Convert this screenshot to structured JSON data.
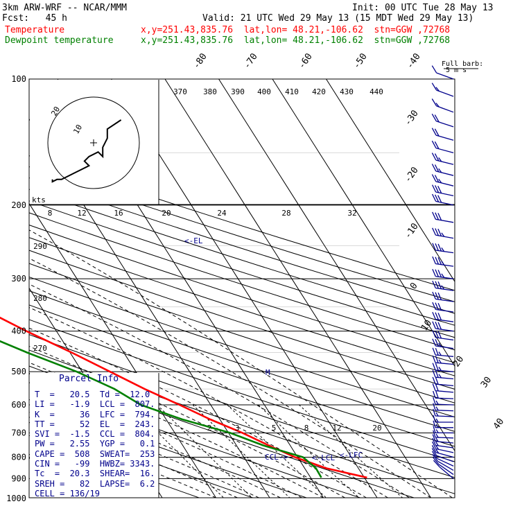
{
  "header": {
    "model": "3km ARW-WRF -- NCAR/MMM",
    "init": "Init: 00 UTC Tue 28 May 13",
    "fcst": "Fcst:   45 h",
    "valid": "Valid: 21 UTC Wed 29 May 13 (15 MDT Wed 29 May 13)",
    "temp_label": "Temperature",
    "temp_loc": "x,y=251.43,835.76  lat,lon= 48.21,-106.62  stn=GGW ,72768",
    "dew_label": "Dewpoint temperature",
    "dew_loc": "x,y=251.43,835.76  lat,lon= 48.21,-106.62  stn=GGW ,72768"
  },
  "colors": {
    "temperature": "#ff0000",
    "dewpoint": "#008000",
    "parcel": "#00008b",
    "barbs": "#00008b",
    "grid": "#000000"
  },
  "chart_data": {
    "type": "line",
    "subtype": "skew-T log-P diagram",
    "y_scale": "log",
    "pressure_labels": [
      "100",
      "200",
      "300",
      "400",
      "500",
      "600",
      "700",
      "800",
      "900",
      "1000"
    ],
    "temperature_labels": [
      "-80",
      "-70",
      "-60",
      "-50",
      "-40",
      "-30",
      "-20",
      "-10",
      "0",
      "10",
      "20",
      "30",
      "40"
    ],
    "theta_labels": [
      "370",
      "380",
      "390",
      "400",
      "410",
      "420",
      "430",
      "440"
    ],
    "theta_side_labels": [
      "290",
      "280",
      "270"
    ],
    "mixing_ratio_labels": [
      "2",
      "3",
      "5",
      "8",
      "12",
      "20"
    ],
    "hodograph_speed_labels": [
      "8",
      "12",
      "16",
      "20",
      "24",
      "28",
      "32"
    ],
    "hodograph": {
      "unit_label": "kts",
      "ring_labels": [
        "20",
        "10"
      ],
      "center_mark": "+",
      "trace": [
        [
          -9,
          -8
        ],
        [
          -9,
          -8.5
        ],
        [
          -8,
          -8
        ],
        [
          -7,
          -8
        ],
        [
          -4,
          -6.5
        ],
        [
          -3,
          -6
        ],
        [
          -1,
          -5
        ],
        [
          -2,
          -4
        ],
        [
          -1,
          -3
        ],
        [
          1,
          -2
        ],
        [
          2,
          -3
        ],
        [
          2,
          -1
        ],
        [
          3,
          1
        ],
        [
          3,
          3
        ],
        [
          6,
          5
        ]
      ]
    },
    "series": [
      {
        "name": "Temperature",
        "color": "#ff0000",
        "points": [
          [
            895,
            20.5
          ],
          [
            850,
            14.0
          ],
          [
            800,
            9.5
          ],
          [
            750,
            6.0
          ],
          [
            700,
            2.6
          ],
          [
            650,
            -1.8
          ],
          [
            600,
            -5.8
          ],
          [
            550,
            -10.4
          ],
          [
            500,
            -14.8
          ],
          [
            450,
            -19.7
          ],
          [
            400,
            -25.6
          ],
          [
            350,
            -31.6
          ],
          [
            300,
            -39.2
          ],
          [
            250,
            -47.8
          ],
          [
            225,
            -52.0
          ],
          [
            200,
            -51.5
          ],
          [
            180,
            -50.0
          ],
          [
            160,
            -49.5
          ],
          [
            140,
            -48.3
          ],
          [
            120,
            -47.0
          ],
          [
            100,
            -46.5
          ]
        ]
      },
      {
        "name": "Dewpoint temperature",
        "color": "#008000",
        "points": [
          [
            895,
            12.0
          ],
          [
            850,
            12.1
          ],
          [
            800,
            11.0
          ],
          [
            750,
            5.0
          ],
          [
            700,
            0.3
          ],
          [
            650,
            -7.0
          ],
          [
            600,
            -13.0
          ],
          [
            550,
            -16.0
          ],
          [
            500,
            -21.0
          ],
          [
            450,
            -28.0
          ],
          [
            400,
            -35.0
          ],
          [
            350,
            -43.2
          ],
          [
            300,
            -52.0
          ],
          [
            250,
            -62.8
          ],
          [
            225,
            -67.2
          ],
          [
            200,
            -66.5
          ],
          [
            180,
            -78.5
          ],
          [
            160,
            -77.0
          ],
          [
            140,
            -79.5
          ],
          [
            120,
            -84.0
          ],
          [
            100,
            -87.4
          ]
        ]
      }
    ],
    "annotations": [
      {
        "text": "<-EL",
        "p": 243
      },
      {
        "text": "M",
        "p": 500
      },
      {
        "text": "CCL->",
        "p": 805
      },
      {
        "text": "<-LCL",
        "p": 807
      },
      {
        "text": "<-LFC",
        "p": 794
      }
    ],
    "wind_profile": {
      "title": "Full barb:",
      "subtitle": "5 m s",
      "levels": [
        [
          900,
          230,
          5
        ],
        [
          880,
          235,
          5
        ],
        [
          860,
          240,
          6
        ],
        [
          840,
          245,
          6
        ],
        [
          820,
          250,
          6
        ],
        [
          800,
          255,
          7
        ],
        [
          780,
          258,
          7
        ],
        [
          760,
          262,
          7
        ],
        [
          740,
          265,
          7
        ],
        [
          720,
          268,
          7
        ],
        [
          700,
          270,
          7
        ],
        [
          680,
          270,
          7
        ],
        [
          660,
          270,
          7
        ],
        [
          640,
          268,
          7
        ],
        [
          620,
          268,
          8
        ],
        [
          600,
          268,
          8
        ],
        [
          580,
          268,
          9
        ],
        [
          560,
          265,
          10
        ],
        [
          540,
          265,
          11
        ],
        [
          520,
          265,
          12
        ],
        [
          500,
          265,
          12
        ],
        [
          480,
          265,
          12
        ],
        [
          460,
          265,
          13
        ],
        [
          440,
          262,
          13
        ],
        [
          420,
          262,
          14
        ],
        [
          400,
          262,
          14
        ],
        [
          380,
          262,
          15
        ],
        [
          360,
          262,
          16
        ],
        [
          340,
          262,
          16
        ],
        [
          320,
          262,
          17
        ],
        [
          300,
          262,
          17
        ],
        [
          280,
          262,
          17
        ],
        [
          260,
          262,
          17
        ],
        [
          240,
          260,
          17
        ],
        [
          220,
          260,
          16
        ],
        [
          200,
          258,
          15
        ],
        [
          190,
          258,
          14
        ],
        [
          180,
          256,
          13
        ],
        [
          170,
          256,
          12
        ],
        [
          160,
          256,
          12
        ],
        [
          150,
          255,
          11
        ],
        [
          140,
          254,
          10
        ],
        [
          130,
          252,
          9
        ],
        [
          120,
          250,
          8
        ],
        [
          110,
          250,
          7
        ],
        [
          100,
          250,
          5
        ]
      ]
    }
  },
  "parcel_info": {
    "title": "Parcel Info",
    "rows": [
      "T  =   20.5  Td =  12.0",
      "LI =   -1.9  LCL =  807.",
      "K  =     36  LFC =  794.",
      "TT =     52  EL  =  243.",
      "SVI =  -1.5  CCL =  804.",
      "PW =   2.55  YGP =   0.1",
      "CAPE =  508  SWEAT=  253",
      "CIN =   -99  HWBZ= 3343.",
      "Tc  =  20.3  SHEAR=  16.",
      "SREH =   82  LAPSE=  6.2",
      "CELL = 136/19"
    ]
  }
}
